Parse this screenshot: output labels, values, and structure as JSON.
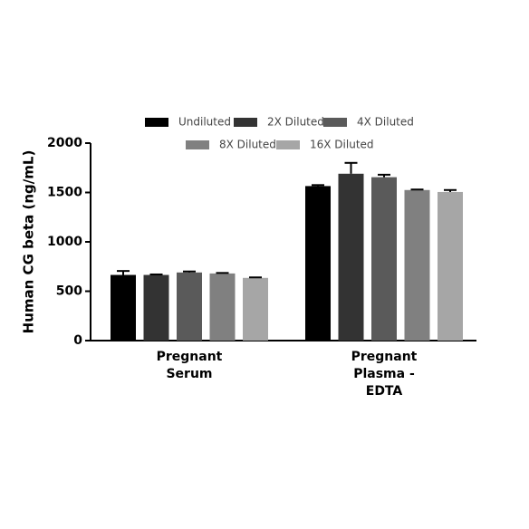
{
  "chart_data": {
    "type": "bar",
    "y_label": "Human CG beta (ng/mL)",
    "categories": [
      [
        "Pregnant",
        "Serum"
      ],
      [
        "Pregnant",
        "Plasma -",
        "EDTA"
      ]
    ],
    "series": [
      {
        "name": "Undiluted",
        "color": "#000000",
        "values": [
          665,
          1565
        ],
        "errors": [
          40,
          10
        ]
      },
      {
        "name": "2X Diluted",
        "color": "#333333",
        "values": [
          665,
          1690
        ],
        "errors": [
          5,
          110
        ]
      },
      {
        "name": "4X Diluted",
        "color": "#5a5a5a",
        "values": [
          690,
          1655
        ],
        "errors": [
          10,
          25
        ]
      },
      {
        "name": "8X Diluted",
        "color": "#808080",
        "values": [
          680,
          1525
        ],
        "errors": [
          5,
          5
        ]
      },
      {
        "name": "16X Diluted",
        "color": "#a6a6a6",
        "values": [
          635,
          1505
        ],
        "errors": [
          5,
          20
        ]
      }
    ],
    "ylim": [
      0,
      2000
    ],
    "yticks": [
      0,
      500,
      1000,
      1500,
      2000
    ]
  }
}
